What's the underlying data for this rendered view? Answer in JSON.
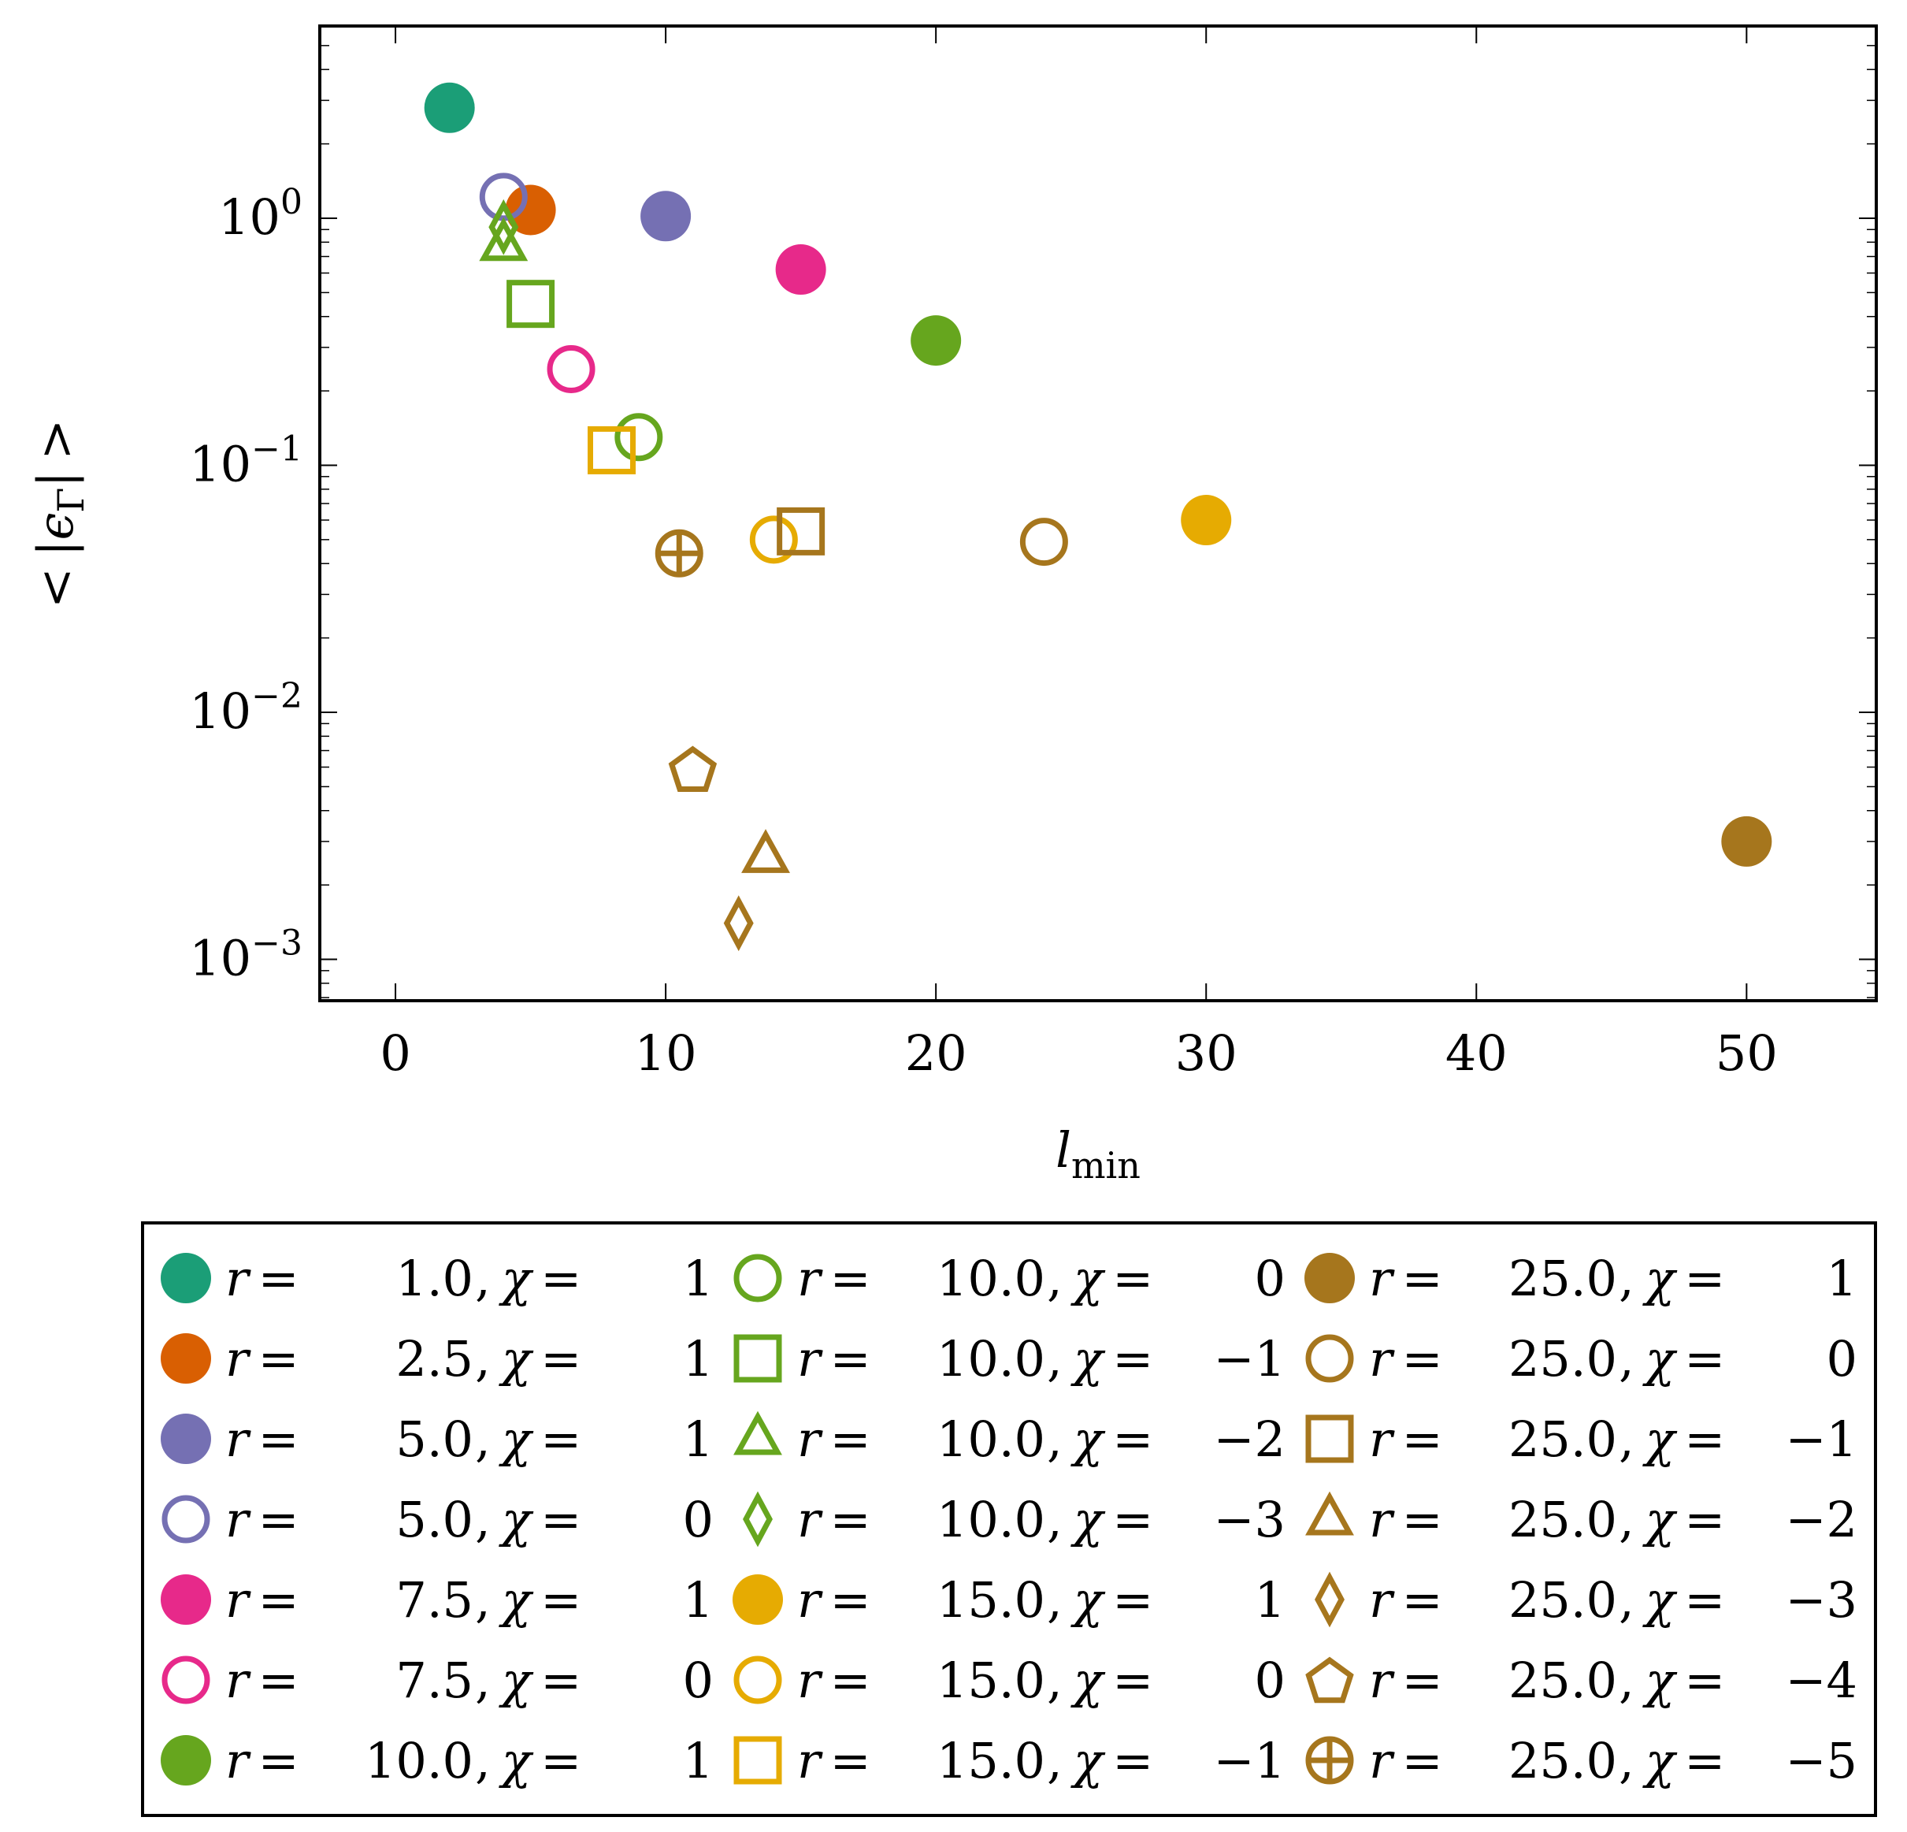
{
  "chart_data": {
    "type": "scatter",
    "xlabel": {
      "main": "l",
      "sub": "min"
    },
    "ylabel": "< |ε_Γ| >",
    "ylabel_parts": {
      "open": "<",
      "bar": "|",
      "eps": "ϵ",
      "sub": "Γ",
      "close": ">"
    },
    "x_scale": "linear",
    "y_scale": "log",
    "xlim": [
      -2.8,
      54.8
    ],
    "ylim": [
      0.00068,
      6.0
    ],
    "x_ticks": [
      {
        "value": 0,
        "label": "0"
      },
      {
        "value": 10,
        "label": "10"
      },
      {
        "value": 20,
        "label": "20"
      },
      {
        "value": 30,
        "label": "30"
      },
      {
        "value": 40,
        "label": "40"
      },
      {
        "value": 50,
        "label": "50"
      }
    ],
    "y_ticks": [
      {
        "value": 1,
        "base": "10",
        "exp": "0"
      },
      {
        "value": 0.1,
        "base": "10",
        "exp": "−1"
      },
      {
        "value": 0.01,
        "base": "10",
        "exp": "−2"
      },
      {
        "value": 0.001,
        "base": "10",
        "exp": "−3"
      }
    ],
    "grid": false,
    "legend_position": "below",
    "legend_columns": 3,
    "series": [
      {
        "name": "r = 1.0, χ = 1",
        "r": "1.0",
        "chi": "1",
        "color": "#1b9e77",
        "marker": "circle",
        "filled": true,
        "x": 2,
        "y": 2.8
      },
      {
        "name": "r = 2.5, χ = 1",
        "r": "2.5",
        "chi": "1",
        "color": "#d95f02",
        "marker": "circle",
        "filled": true,
        "x": 5,
        "y": 1.08
      },
      {
        "name": "r = 5.0, χ = 1",
        "r": "5.0",
        "chi": "1",
        "color": "#7570b3",
        "marker": "circle",
        "filled": true,
        "x": 10,
        "y": 1.02
      },
      {
        "name": "r = 5.0, χ = 0",
        "r": "5.0",
        "chi": "0",
        "color": "#7570b3",
        "marker": "circle",
        "filled": false,
        "x": 4,
        "y": 1.22
      },
      {
        "name": "r = 7.5, χ = 1",
        "r": "7.5",
        "chi": "1",
        "color": "#e7298a",
        "marker": "circle",
        "filled": true,
        "x": 15,
        "y": 0.62
      },
      {
        "name": "r = 7.5, χ = 0",
        "r": "7.5",
        "chi": "0",
        "color": "#e7298a",
        "marker": "circle",
        "filled": false,
        "x": 6.5,
        "y": 0.245
      },
      {
        "name": "r = 10.0, χ = 1",
        "r": "10.0",
        "chi": "1",
        "color": "#66a61e",
        "marker": "circle",
        "filled": true,
        "x": 20,
        "y": 0.32
      },
      {
        "name": "r = 10.0, χ = 0",
        "r": "10.0",
        "chi": "0",
        "color": "#66a61e",
        "marker": "circle",
        "filled": false,
        "x": 9,
        "y": 0.13
      },
      {
        "name": "r = 10.0, χ = −1",
        "r": "10.0",
        "chi": "−1",
        "color": "#66a61e",
        "marker": "square",
        "filled": false,
        "x": 5,
        "y": 0.45
      },
      {
        "name": "r = 10.0, χ = −2",
        "r": "10.0",
        "chi": "−2",
        "color": "#66a61e",
        "marker": "triangle",
        "filled": false,
        "x": 4,
        "y": 0.78
      },
      {
        "name": "r = 10.0, χ = −3",
        "r": "10.0",
        "chi": "−3",
        "color": "#66a61e",
        "marker": "diamond",
        "filled": false,
        "x": 4,
        "y": 0.92
      },
      {
        "name": "r = 15.0, χ = 1",
        "r": "15.0",
        "chi": "1",
        "color": "#e6ab02",
        "marker": "circle",
        "filled": true,
        "x": 30,
        "y": 0.06
      },
      {
        "name": "r = 15.0, χ = 0",
        "r": "15.0",
        "chi": "0",
        "color": "#e6ab02",
        "marker": "circle",
        "filled": false,
        "x": 14,
        "y": 0.05
      },
      {
        "name": "r = 15.0, χ = −1",
        "r": "15.0",
        "chi": "−1",
        "color": "#e6ab02",
        "marker": "square",
        "filled": false,
        "x": 8,
        "y": 0.115
      },
      {
        "name": "r = 25.0, χ = 1",
        "r": "25.0",
        "chi": "1",
        "color": "#a6761d",
        "marker": "circle",
        "filled": true,
        "x": 50,
        "y": 0.003
      },
      {
        "name": "r = 25.0, χ = 0",
        "r": "25.0",
        "chi": "0",
        "color": "#a6761d",
        "marker": "circle",
        "filled": false,
        "x": 24,
        "y": 0.049
      },
      {
        "name": "r = 25.0, χ = −1",
        "r": "25.0",
        "chi": "−1",
        "color": "#a6761d",
        "marker": "square",
        "filled": false,
        "x": 15,
        "y": 0.054
      },
      {
        "name": "r = 25.0, χ = −2",
        "r": "25.0",
        "chi": "−2",
        "color": "#a6761d",
        "marker": "triangle",
        "filled": false,
        "x": 13.7,
        "y": 0.0026
      },
      {
        "name": "r = 25.0, χ = −3",
        "r": "25.0",
        "chi": "−3",
        "color": "#a6761d",
        "marker": "diamond",
        "filled": false,
        "x": 12.7,
        "y": 0.0014
      },
      {
        "name": "r = 25.0, χ = −4",
        "r": "25.0",
        "chi": "−4",
        "color": "#a6761d",
        "marker": "pentagon",
        "filled": false,
        "x": 11,
        "y": 0.0059
      },
      {
        "name": "r = 25.0, χ = −5",
        "r": "25.0",
        "chi": "−5",
        "color": "#a6761d",
        "marker": "oplus",
        "filled": false,
        "x": 10.5,
        "y": 0.044
      }
    ]
  }
}
